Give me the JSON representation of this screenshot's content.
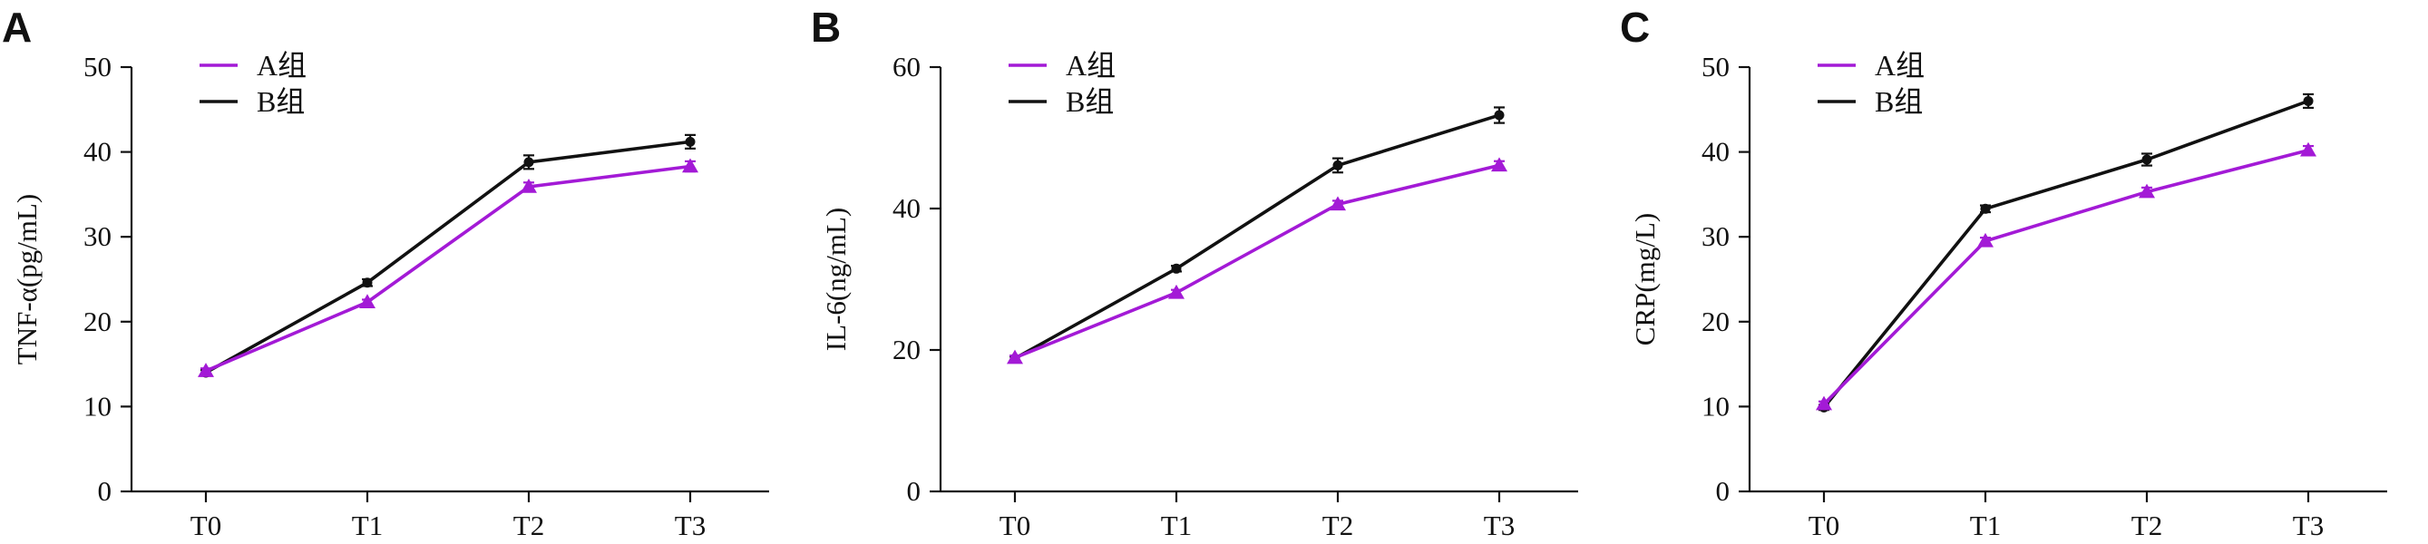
{
  "colors": {
    "A": "#a31ad6",
    "B": "#111111"
  },
  "chart_data": [
    {
      "panel": "A",
      "type": "line",
      "ylabel": "TNF-α(pg/mL)",
      "categories": [
        "T0",
        "T1",
        "T2",
        "T3"
      ],
      "ylim": [
        0,
        50
      ],
      "yticks": [
        "0",
        "10",
        "20",
        "30",
        "40",
        "50"
      ],
      "legend": "top-left",
      "series": [
        {
          "name": "A组",
          "marker": "triangle",
          "values": [
            14.2,
            22.3,
            35.9,
            38.3
          ],
          "errors": [
            0.3,
            0.3,
            0.5,
            0.6
          ]
        },
        {
          "name": "B组",
          "marker": "circle",
          "values": [
            14.0,
            24.6,
            38.8,
            41.2
          ],
          "errors": [
            0.3,
            0.4,
            0.8,
            0.8
          ]
        }
      ]
    },
    {
      "panel": "B",
      "type": "line",
      "ylabel": "IL-6(ng/mL)",
      "categories": [
        "T0",
        "T1",
        "T2",
        "T3"
      ],
      "ylim": [
        0,
        60
      ],
      "yticks": [
        "0",
        "20",
        "40",
        "60"
      ],
      "legend": "top-left",
      "series": [
        {
          "name": "A组",
          "marker": "triangle",
          "values": [
            18.9,
            28.1,
            40.6,
            46.1
          ],
          "errors": [
            0.3,
            0.4,
            0.5,
            0.6
          ]
        },
        {
          "name": "B组",
          "marker": "circle",
          "values": [
            18.8,
            31.5,
            46.1,
            53.2
          ],
          "errors": [
            0.3,
            0.4,
            1.0,
            1.1
          ]
        }
      ]
    },
    {
      "panel": "C",
      "type": "line",
      "ylabel": "CRP(mg/L)",
      "categories": [
        "T0",
        "T1",
        "T2",
        "T3"
      ],
      "ylim": [
        0,
        50
      ],
      "yticks": [
        "0",
        "10",
        "20",
        "30",
        "40",
        "50"
      ],
      "legend": "top-left",
      "series": [
        {
          "name": "A组",
          "marker": "triangle",
          "values": [
            10.3,
            29.5,
            35.3,
            40.2
          ],
          "errors": [
            0.3,
            0.4,
            0.5,
            0.5
          ]
        },
        {
          "name": "B组",
          "marker": "circle",
          "values": [
            9.9,
            33.3,
            39.1,
            46.0
          ],
          "errors": [
            0.3,
            0.4,
            0.7,
            0.8
          ]
        }
      ]
    }
  ]
}
